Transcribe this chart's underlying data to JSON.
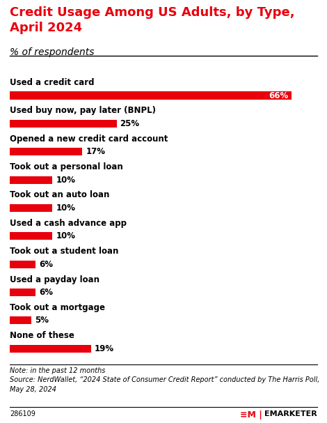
{
  "title": "Credit Usage Among US Adults, by Type,\nApril 2024",
  "subtitle": "% of respondents",
  "categories": [
    "Used a credit card",
    "Used buy now, pay later (BNPL)",
    "Opened a new credit card account",
    "Took out a personal loan",
    "Took out an auto loan",
    "Used a cash advance app",
    "Took out a student loan",
    "Used a payday loan",
    "Took out a mortgage",
    "None of these"
  ],
  "values": [
    66,
    25,
    17,
    10,
    10,
    10,
    6,
    6,
    5,
    19
  ],
  "bar_color": "#e8000d",
  "title_color": "#e8000d",
  "background_color": "#ffffff",
  "xlim": [
    0,
    72
  ],
  "note": "Note: in the past 12 months\nSource: NerdWallet, “2024 State of Consumer Credit Report” conducted by The Harris Poll,\nMay 28, 2024",
  "footnote_id": "286109",
  "cat_fontsize": 8.5,
  "val_fontsize": 8.5,
  "title_fontsize": 13,
  "subtitle_fontsize": 10
}
